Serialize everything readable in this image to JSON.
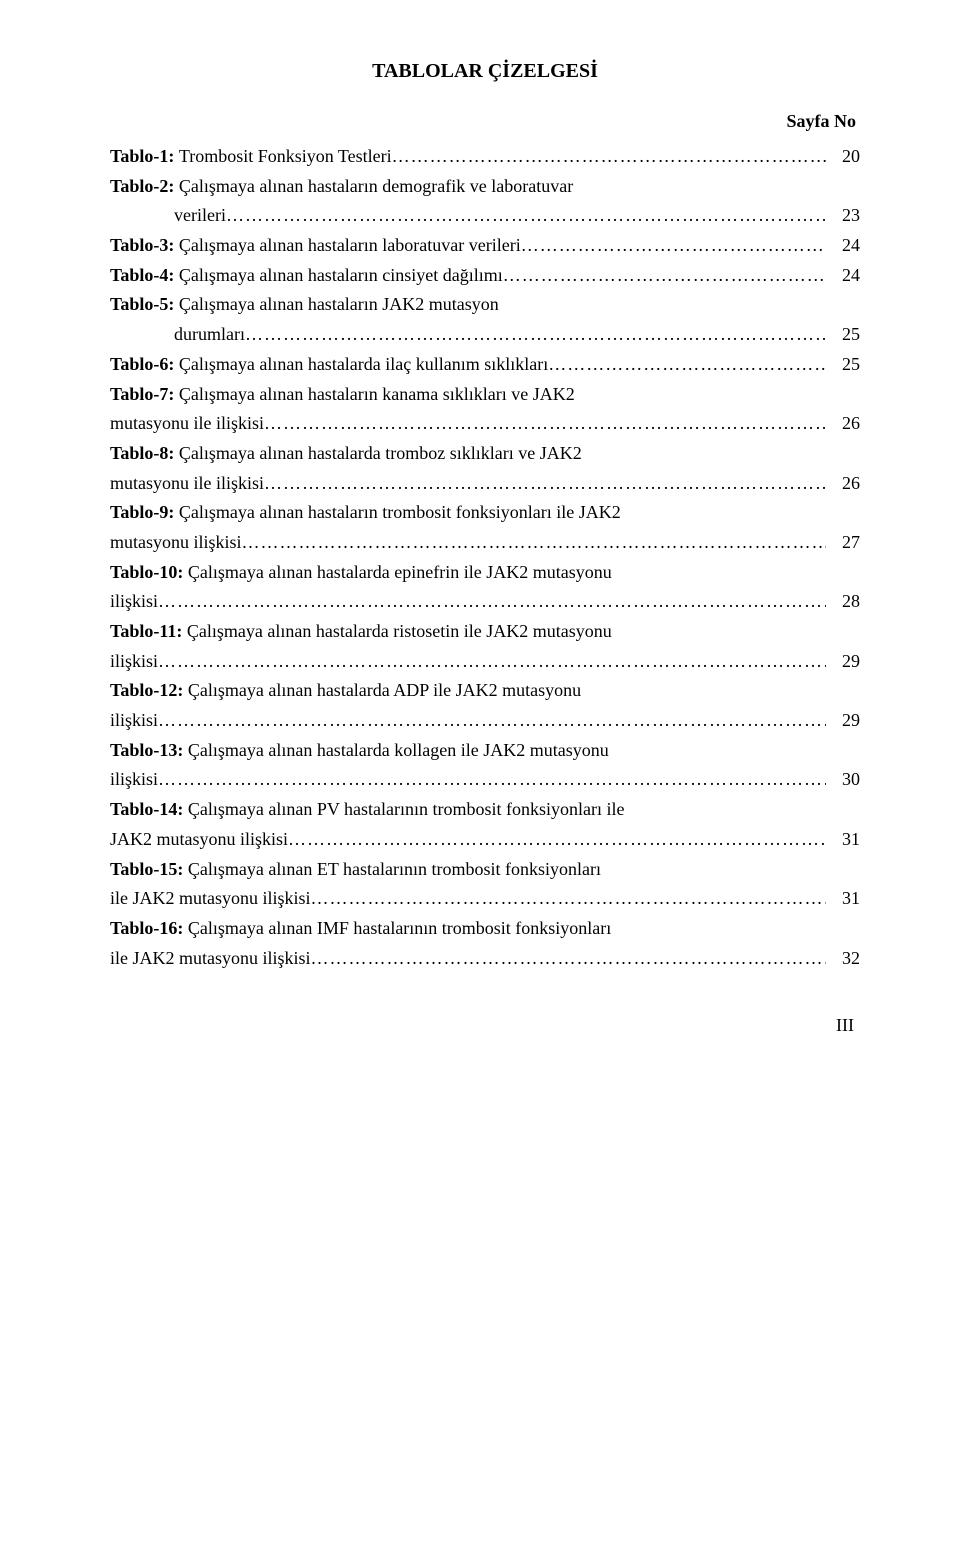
{
  "page": {
    "title": "TABLOLAR ÇİZELGESİ",
    "page_header": "Sayfa No",
    "footer": "III"
  },
  "entries": [
    {
      "label": "Tablo-1:",
      "lines": [
        "Trombosit Fonksiyon Testleri"
      ],
      "page": "20"
    },
    {
      "label": "Tablo-2:",
      "lines": [
        "Çalışmaya alınan hastaların demografik ve laboratuvar",
        "verileri"
      ],
      "page": "23",
      "cont_indent": true
    },
    {
      "label": "Tablo-3:",
      "lines": [
        "Çalışmaya alınan hastaların laboratuvar verileri"
      ],
      "page": "24"
    },
    {
      "label": "Tablo-4:",
      "lines": [
        "Çalışmaya alınan hastaların cinsiyet dağılımı"
      ],
      "page": "24"
    },
    {
      "label": "Tablo-5:",
      "lines": [
        "Çalışmaya alınan hastaların JAK2 mutasyon",
        "durumları"
      ],
      "page": "25",
      "cont_indent": true
    },
    {
      "label": "Tablo-6:",
      "lines": [
        "Çalışmaya alınan hastalarda ilaç kullanım sıklıkları"
      ],
      "page": "25"
    },
    {
      "label": "Tablo-7:",
      "lines": [
        "Çalışmaya alınan hastaların kanama sıklıkları ve JAK2",
        "mutasyonu ile ilişkisi"
      ],
      "page": "26"
    },
    {
      "label": "Tablo-8:",
      "lines": [
        "Çalışmaya alınan hastalarda tromboz sıklıkları ve JAK2",
        " mutasyonu ile ilişkisi"
      ],
      "page": "26"
    },
    {
      "label": "Tablo-9:",
      "lines": [
        "Çalışmaya alınan hastaların trombosit fonksiyonları ile JAK2",
        " mutasyonu ilişkisi"
      ],
      "page": "27"
    },
    {
      "label": "Tablo-10:",
      "lines": [
        "Çalışmaya alınan hastalarda epinefrin ile JAK2 mutasyonu",
        "ilişkisi"
      ],
      "page": "28"
    },
    {
      "label": "Tablo-11:",
      "lines": [
        "Çalışmaya alınan hastalarda ristosetin  ile JAK2 mutasyonu",
        "ilişkisi"
      ],
      "page": "29"
    },
    {
      "label": "Tablo-12:",
      "lines": [
        "Çalışmaya alınan hastalarda ADP ile JAK2 mutasyonu",
        " ilişkisi"
      ],
      "page": "29"
    },
    {
      "label": "Tablo-13:",
      "lines": [
        "Çalışmaya alınan hastalarda kollagen  ile  JAK2 mutasyonu",
        "ilişkisi"
      ],
      "page": "30"
    },
    {
      "label": "Tablo-14:",
      "lines": [
        "Çalışmaya alınan PV hastalarının trombosit fonksiyonları ile",
        " JAK2 mutasyonu  ilişkisi"
      ],
      "page": "31"
    },
    {
      "label": "Tablo-15:",
      "lines": [
        "Çalışmaya alınan ET hastalarının trombosit fonksiyonları",
        "ile JAK2 mutasyonu  ilişkisi"
      ],
      "page": "31"
    },
    {
      "label": "Tablo-16:",
      "lines": [
        "Çalışmaya alınan IMF hastalarının trombosit fonksiyonları",
        "ile JAK2 mutasyonu  ilişkisi"
      ],
      "page": "32"
    }
  ],
  "leader_fill": "………………………………………………………………………………………………………………"
}
